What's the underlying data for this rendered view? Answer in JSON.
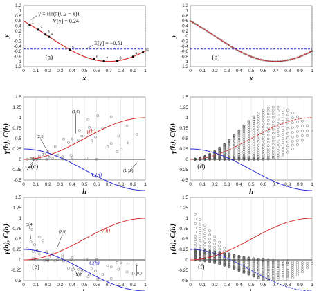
{
  "colors": {
    "red": "#d42a2a",
    "blue": "#2a2ad4",
    "marker": "#555555",
    "grid": "#cccccc"
  },
  "chart_data": [
    {
      "id": "a",
      "type": "line",
      "panel_label": "(a)",
      "xlabel": "x",
      "ylabel": "y",
      "xlim": [
        0,
        1
      ],
      "ylim": [
        -1.2,
        1.2
      ],
      "xticks": [
        "0",
        "0.1",
        "0.2",
        "0.3",
        "0.4",
        "0.5",
        "0.6",
        "0.7",
        "0.8",
        "0.9",
        "1"
      ],
      "yticks": [
        "1.2",
        "1",
        "0.8",
        "0.6",
        "0.4",
        "0.2",
        "0",
        "-0.2",
        "-0.4",
        "-0.6",
        "-0.8",
        "-1",
        "-1.2"
      ],
      "curve_label": "y = sin(π(0.2 − x))",
      "variance_label": "V[y] = 0.24",
      "mean_label": "E[y] = −0.51",
      "mean": -0.51,
      "sample_points": [
        {
          "label": "1",
          "x": 0.05,
          "y": 0.45
        },
        {
          "label": "2",
          "x": 0.12,
          "y": 0.25
        },
        {
          "label": "3",
          "x": 0.18,
          "y": 0.06
        },
        {
          "label": "4",
          "x": 0.21,
          "y": -0.03
        },
        {
          "label": "5",
          "x": 0.38,
          "y": -0.54
        },
        {
          "label": "6",
          "x": 0.58,
          "y": -0.91
        },
        {
          "label": "7",
          "x": 0.66,
          "y": -0.98
        },
        {
          "label": "8",
          "x": 0.77,
          "y": -0.97
        },
        {
          "label": "9",
          "x": 0.9,
          "y": -0.81
        },
        {
          "label": "10",
          "x": 0.98,
          "y": -0.64
        }
      ]
    },
    {
      "id": "b",
      "type": "line",
      "panel_label": "(b)",
      "xlim": [
        0,
        1
      ],
      "ylim": [
        -1.2,
        1.2
      ],
      "xticks": [
        "0",
        "0.1",
        "0.2",
        "0.3",
        "0.4",
        "0.5",
        "0.6",
        "0.7",
        "0.8",
        "0.9",
        "1"
      ],
      "yticks": [
        "1.2",
        "1",
        "0.8",
        "0.6",
        "0.4",
        "0.2",
        "0",
        "-0.2",
        "-0.4",
        "-0.6",
        "-0.8",
        "-1",
        "-1.2"
      ],
      "mean": -0.51,
      "x": "all grid points 0..1 step 0.02 on the curve"
    },
    {
      "id": "c",
      "type": "scatter",
      "panel_label": "(c)",
      "xlabel": "h",
      "ylabel": "γ(h), C(h)",
      "xlim": [
        0,
        1
      ],
      "ylim": [
        -0.5,
        1.5
      ],
      "xticks": [
        "0",
        "0.1",
        "0.2",
        "0.3",
        "0.4",
        "0.5",
        "0.6",
        "0.7",
        "0.8",
        "0.9",
        "1"
      ],
      "yticks": [
        "1.5",
        "1.25",
        "1",
        "0.75",
        "0.5",
        "0.25",
        "0",
        "-0.25",
        "-0.5"
      ],
      "series": [
        {
          "name": "γ(h)",
          "color": "red"
        },
        {
          "name": "C(h)",
          "color": "blue"
        }
      ],
      "annotations": [
        "(1,6)",
        "(2,5)",
        "(3,4)",
        "(1,10)"
      ]
    },
    {
      "id": "d",
      "type": "scatter",
      "panel_label": "(d)",
      "xlim": [
        0,
        1
      ],
      "ylim": [
        -0.5,
        1.5
      ],
      "xticks": [
        "0",
        "0.1",
        "0.2",
        "0.3",
        "0.4",
        "0.5",
        "0.6",
        "0.7",
        "0.8",
        "0.9",
        "1"
      ],
      "yticks": [
        "1.5",
        "1.25",
        "1",
        "0.75",
        "0.5",
        "0.25",
        "0",
        "-0.25",
        "-0.5"
      ]
    },
    {
      "id": "e",
      "type": "scatter",
      "panel_label": "(e)",
      "xlabel": "h",
      "ylabel": "γ(h), C(h)",
      "xlim": [
        0,
        1
      ],
      "ylim": [
        -0.5,
        1.5
      ],
      "xticks": [
        "0",
        "0.1",
        "0.2",
        "0.3",
        "0.4",
        "0.5",
        "0.6",
        "0.7",
        "0.8",
        "0.9",
        "1"
      ],
      "yticks": [
        "1.5",
        "1.25",
        "1",
        "0.75",
        "0.5",
        "0.25",
        "0",
        "-0.25",
        "-0.5"
      ],
      "series": [
        {
          "name": "γ(h)",
          "color": "red"
        },
        {
          "name": "C(h)",
          "color": "blue"
        }
      ],
      "annotations": [
        "(3,4)",
        "(2,5)",
        "(1,6)",
        "(1,10)"
      ]
    },
    {
      "id": "f",
      "type": "scatter",
      "panel_label": "(f)",
      "xlim": [
        0,
        1
      ],
      "ylim": [
        -0.5,
        1.5
      ],
      "xticks": [
        "0",
        "0.1",
        "0.2",
        "0.3",
        "0.4",
        "0.5",
        "0.6",
        "0.7",
        "0.8",
        "0.9",
        "1"
      ],
      "yticks": [
        "1.5",
        "1.25",
        "1",
        "0.75",
        "0.5",
        "0.25",
        "0",
        "-0.25",
        "-0.5"
      ]
    }
  ]
}
